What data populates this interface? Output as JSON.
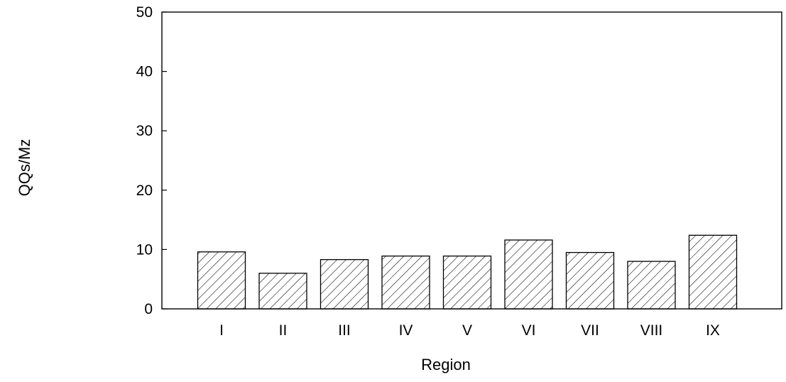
{
  "chart_data": {
    "type": "bar",
    "title": "",
    "xlabel": "Region",
    "ylabel": "QQs/Mz",
    "categories": [
      "I",
      "II",
      "III",
      "IV",
      "V",
      "VI",
      "VII",
      "VIII",
      "IX"
    ],
    "values": [
      9.6,
      6.0,
      8.3,
      8.9,
      8.9,
      11.6,
      9.5,
      8.0,
      12.4
    ],
    "ylim": [
      0,
      50
    ],
    "yticks": [
      "0",
      "10",
      "20",
      "30",
      "40",
      "50"
    ],
    "grid": false,
    "legend": "none",
    "bar_fill": "diagonal-hatch",
    "colors": {
      "bar_stroke": "#000000",
      "hatch": "#000000",
      "axis": "#000000",
      "background": "#ffffff"
    }
  }
}
